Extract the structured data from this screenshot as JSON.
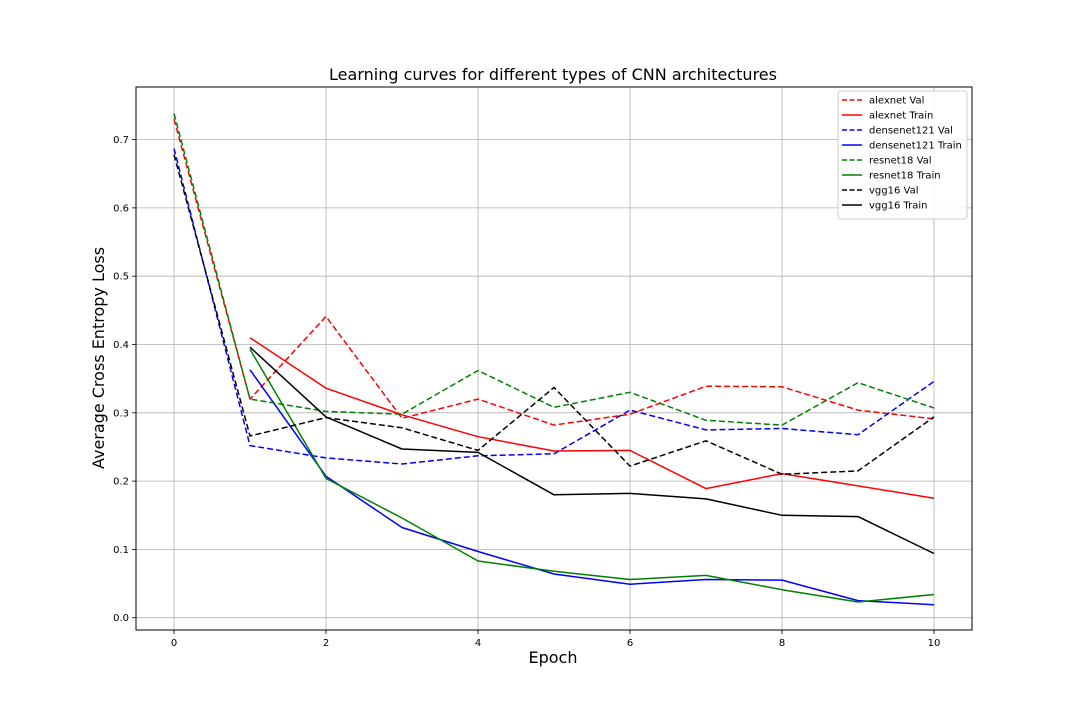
{
  "chart_data": {
    "type": "line",
    "title": "Learning curves for different types of CNN architectures",
    "xlabel": "Epoch",
    "ylabel": "Average Cross Entropy Loss",
    "xlim": [
      -0.5,
      10.5
    ],
    "ylim": [
      -0.018,
      0.777
    ],
    "xticks": [
      0,
      2,
      4,
      6,
      8,
      10
    ],
    "yticks": [
      0.0,
      0.1,
      0.2,
      0.3,
      0.4,
      0.5,
      0.6,
      0.7
    ],
    "ytick_labels": [
      "0.0",
      "0.1",
      "0.2",
      "0.3",
      "0.4",
      "0.5",
      "0.6",
      "0.7"
    ],
    "grid": true,
    "legend_position": "top-right",
    "series": [
      {
        "name": "alexnet Val",
        "color": "#ff0000",
        "dashed": true,
        "x": [
          0,
          1,
          2,
          3,
          4,
          5,
          6,
          7,
          8,
          9,
          10
        ],
        "y": [
          0.73,
          0.32,
          0.441,
          0.292,
          0.32,
          0.282,
          0.298,
          0.339,
          0.338,
          0.304,
          0.291
        ]
      },
      {
        "name": "alexnet Train",
        "color": "#ff0000",
        "dashed": false,
        "x": [
          1,
          2,
          3,
          4,
          5,
          6,
          7,
          8,
          9,
          10
        ],
        "y": [
          0.41,
          0.336,
          0.297,
          0.265,
          0.244,
          0.245,
          0.189,
          0.211,
          0.193,
          0.175
        ]
      },
      {
        "name": "densenet121 Val",
        "color": "#0000ff",
        "dashed": true,
        "x": [
          0,
          1,
          2,
          3,
          4,
          5,
          6,
          7,
          8,
          9,
          10
        ],
        "y": [
          0.687,
          0.252,
          0.234,
          0.225,
          0.237,
          0.24,
          0.304,
          0.275,
          0.277,
          0.268,
          0.346
        ]
      },
      {
        "name": "densenet121 Train",
        "color": "#0000ff",
        "dashed": false,
        "x": [
          1,
          2,
          3,
          4,
          5,
          6,
          7,
          8,
          9,
          10
        ],
        "y": [
          0.363,
          0.207,
          0.132,
          0.097,
          0.064,
          0.049,
          0.056,
          0.055,
          0.025,
          0.019
        ]
      },
      {
        "name": "resnet18 Val",
        "color": "#008000",
        "dashed": true,
        "x": [
          0,
          1,
          2,
          3,
          4,
          5,
          6,
          7,
          8,
          9,
          10
        ],
        "y": [
          0.738,
          0.32,
          0.302,
          0.298,
          0.362,
          0.308,
          0.33,
          0.289,
          0.282,
          0.344,
          0.307
        ]
      },
      {
        "name": "resnet18 Train",
        "color": "#008000",
        "dashed": false,
        "x": [
          1,
          2,
          3,
          4,
          5,
          6,
          7,
          8,
          9,
          10
        ],
        "y": [
          0.393,
          0.204,
          0.146,
          0.083,
          0.068,
          0.056,
          0.062,
          0.041,
          0.023,
          0.034
        ]
      },
      {
        "name": "vgg16 Val",
        "color": "#000000",
        "dashed": true,
        "x": [
          0,
          1,
          2,
          3,
          4,
          5,
          6,
          7,
          8,
          9,
          10
        ],
        "y": [
          0.678,
          0.266,
          0.293,
          0.278,
          0.245,
          0.337,
          0.222,
          0.259,
          0.21,
          0.215,
          0.294
        ]
      },
      {
        "name": "vgg16 Train",
        "color": "#000000",
        "dashed": false,
        "x": [
          1,
          2,
          3,
          4,
          5,
          6,
          7,
          8,
          9,
          10
        ],
        "y": [
          0.396,
          0.294,
          0.247,
          0.242,
          0.18,
          0.182,
          0.174,
          0.15,
          0.148,
          0.094
        ]
      }
    ]
  }
}
